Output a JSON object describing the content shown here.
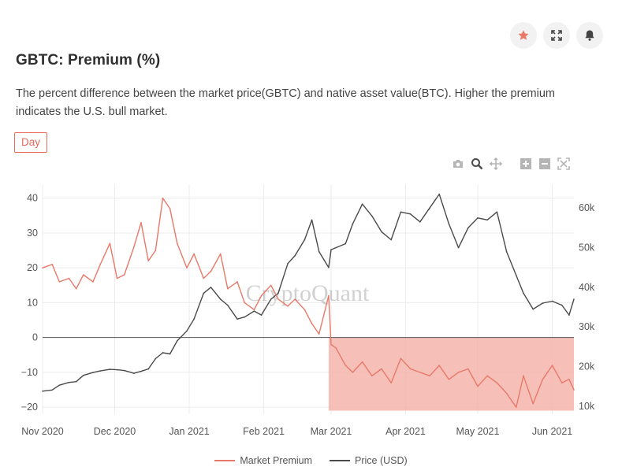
{
  "card": {
    "title": "GBTC: Premium (%)",
    "description": "The percent difference between the market price(GBTC) and native asset value(BTC). Higher the premium indicates the U.S. bull market.",
    "interval": "Day",
    "actions": [
      "star-icon",
      "expand-icon",
      "bell-icon"
    ]
  },
  "modebar": [
    "camera-icon",
    "zoom-icon",
    "pan-icon",
    "zoom-in-icon",
    "zoom-out-icon",
    "autoscale-icon"
  ],
  "watermark": "CryptoQuant",
  "colors": {
    "premium": "#e8796a",
    "price": "#4a4a4a",
    "negative_fill": "#f5b5ac",
    "accent": "#e86a5b"
  },
  "chart_data": {
    "type": "line",
    "x_ticks": [
      "Nov 2020",
      "Dec 2020",
      "Jan 2021",
      "Feb 2021",
      "Mar 2021",
      "Apr 2021",
      "May 2021",
      "Jun 2021"
    ],
    "y_left": {
      "range": [
        -22,
        44
      ],
      "ticks": [
        "40",
        "30",
        "20",
        "10",
        "0",
        "−10",
        "−20"
      ]
    },
    "y_right": {
      "range": [
        8000,
        66000
      ],
      "ticks": [
        "60k",
        "50k",
        "40k",
        "30k",
        "20k",
        "10k"
      ]
    },
    "grid": true,
    "legend_position": "bottom",
    "series": [
      {
        "name": "Market Premium",
        "axis": "left",
        "x": [
          "2020-11-01",
          "2020-11-05",
          "2020-11-08",
          "2020-11-12",
          "2020-11-15",
          "2020-11-18",
          "2020-11-22",
          "2020-11-25",
          "2020-11-29",
          "2020-12-02",
          "2020-12-05",
          "2020-12-09",
          "2020-12-12",
          "2020-12-15",
          "2020-12-18",
          "2020-12-21",
          "2020-12-24",
          "2020-12-27",
          "2020-12-31",
          "2021-01-03",
          "2021-01-07",
          "2021-01-10",
          "2021-01-14",
          "2021-01-17",
          "2021-01-21",
          "2021-01-24",
          "2021-01-28",
          "2021-01-31",
          "2021-02-04",
          "2021-02-07",
          "2021-02-11",
          "2021-02-14",
          "2021-02-18",
          "2021-02-21",
          "2021-02-24",
          "2021-02-28",
          "2021-03-01",
          "2021-03-03",
          "2021-03-07",
          "2021-03-10",
          "2021-03-14",
          "2021-03-18",
          "2021-03-22",
          "2021-03-26",
          "2021-03-30",
          "2021-04-03",
          "2021-04-07",
          "2021-04-11",
          "2021-04-15",
          "2021-04-19",
          "2021-04-23",
          "2021-04-27",
          "2021-05-01",
          "2021-05-05",
          "2021-05-09",
          "2021-05-13",
          "2021-05-17",
          "2021-05-20",
          "2021-05-24",
          "2021-05-28",
          "2021-06-01",
          "2021-06-05",
          "2021-06-08",
          "2021-06-10"
        ],
        "values": [
          20,
          21,
          16,
          17,
          14,
          18,
          16,
          21,
          27,
          17,
          18,
          26,
          33,
          22,
          25,
          40,
          37,
          27,
          20,
          24,
          17,
          19,
          24,
          14,
          16,
          10,
          8,
          12,
          15,
          11,
          9,
          11,
          8,
          4,
          1,
          12,
          -2,
          -3,
          -8,
          -10,
          -7,
          -11,
          -9,
          -13,
          -6,
          -9,
          -10,
          -11,
          -8,
          -12,
          -10,
          -9,
          -14,
          -11,
          -13,
          -16,
          -20,
          -11,
          -19,
          -12,
          -8,
          -13,
          -12,
          -15
        ]
      },
      {
        "name": "Price (USD)",
        "axis": "right",
        "x": [
          "2020-11-01",
          "2020-11-05",
          "2020-11-08",
          "2020-11-12",
          "2020-11-15",
          "2020-11-18",
          "2020-11-22",
          "2020-11-25",
          "2020-11-29",
          "2020-12-02",
          "2020-12-05",
          "2020-12-09",
          "2020-12-12",
          "2020-12-15",
          "2020-12-18",
          "2020-12-21",
          "2020-12-24",
          "2020-12-27",
          "2020-12-31",
          "2021-01-03",
          "2021-01-07",
          "2021-01-10",
          "2021-01-14",
          "2021-01-17",
          "2021-01-21",
          "2021-01-24",
          "2021-01-28",
          "2021-01-31",
          "2021-02-04",
          "2021-02-07",
          "2021-02-11",
          "2021-02-14",
          "2021-02-18",
          "2021-02-21",
          "2021-02-24",
          "2021-02-28",
          "2021-03-01",
          "2021-03-03",
          "2021-03-07",
          "2021-03-10",
          "2021-03-14",
          "2021-03-18",
          "2021-03-22",
          "2021-03-26",
          "2021-03-30",
          "2021-04-03",
          "2021-04-07",
          "2021-04-11",
          "2021-04-15",
          "2021-04-19",
          "2021-04-23",
          "2021-04-27",
          "2021-05-01",
          "2021-05-05",
          "2021-05-09",
          "2021-05-13",
          "2021-05-17",
          "2021-05-20",
          "2021-05-24",
          "2021-05-28",
          "2021-06-01",
          "2021-06-05",
          "2021-06-08",
          "2021-06-10"
        ],
        "values": [
          13800,
          14100,
          15300,
          16000,
          16200,
          17800,
          18500,
          18900,
          19300,
          19200,
          19000,
          18300,
          18800,
          19400,
          22000,
          23500,
          23200,
          26500,
          29000,
          32000,
          38500,
          40000,
          37000,
          35500,
          32000,
          32500,
          34000,
          33000,
          37000,
          38500,
          46000,
          48000,
          52000,
          57000,
          49000,
          45000,
          49500,
          50000,
          51000,
          56000,
          61000,
          58000,
          54000,
          52000,
          59000,
          58500,
          56500,
          60000,
          63500,
          56000,
          50000,
          55000,
          57500,
          57000,
          59000,
          49000,
          43000,
          38500,
          34500,
          36000,
          36500,
          35500,
          33000,
          37000
        ]
      }
    ],
    "shaded_region": {
      "x_start": "2021-02-28",
      "x_end": "2021-06-10",
      "y_low": -21,
      "y_high": 0
    }
  }
}
